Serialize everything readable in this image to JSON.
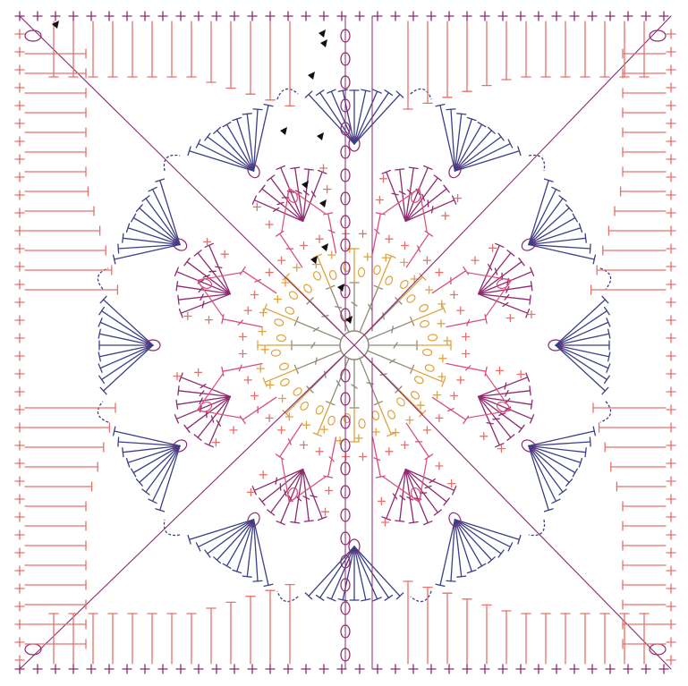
{
  "diagram": {
    "kind": "crochet-granny-square-chart",
    "background": "#ffffff",
    "colors": {
      "center_ring": "#8f8a78",
      "rounds_gold": "#e0a23a",
      "rounds_pink": "#d94f7a",
      "rounds_rose": "#e8706a",
      "rounds_purple": "#8e2a6e",
      "rounds_navy": "#3b3f86",
      "markers": "#111111"
    },
    "symbols": [
      "chain-oval",
      "single-crochet-cross",
      "double-crochet-tee",
      "treble-crochet-tee",
      "slip-stitch-dot",
      "start-marker-triangle"
    ]
  }
}
